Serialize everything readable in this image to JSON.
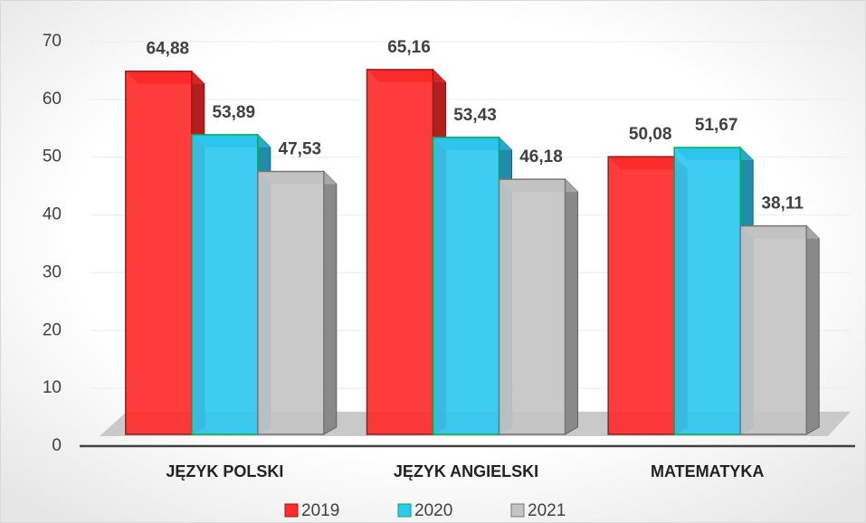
{
  "chart_data": {
    "type": "bar3d",
    "categories": [
      "JĘZYK POLSKI",
      "JĘZYK ANGIELSKI",
      "MATEMATYKA"
    ],
    "series": [
      {
        "name": "2019",
        "color": "#ff2b2b",
        "values": [
          64.88,
          65.16,
          50.08
        ],
        "value_labels": [
          "64,88",
          "65,16",
          "50,08"
        ]
      },
      {
        "name": "2020",
        "color": "#2ec8f2",
        "values": [
          53.89,
          53.43,
          51.67
        ],
        "value_labels": [
          "53,89",
          "53,43",
          "51,67"
        ]
      },
      {
        "name": "2021",
        "color": "#c4c4c4",
        "values": [
          47.53,
          46.18,
          38.11
        ],
        "value_labels": [
          "47,53",
          "46,18",
          "38,11"
        ]
      }
    ],
    "ylim": [
      0,
      70
    ],
    "yticks": [
      0,
      10,
      20,
      30,
      40,
      50,
      60,
      70
    ],
    "grid": true,
    "legend": "bottom"
  }
}
